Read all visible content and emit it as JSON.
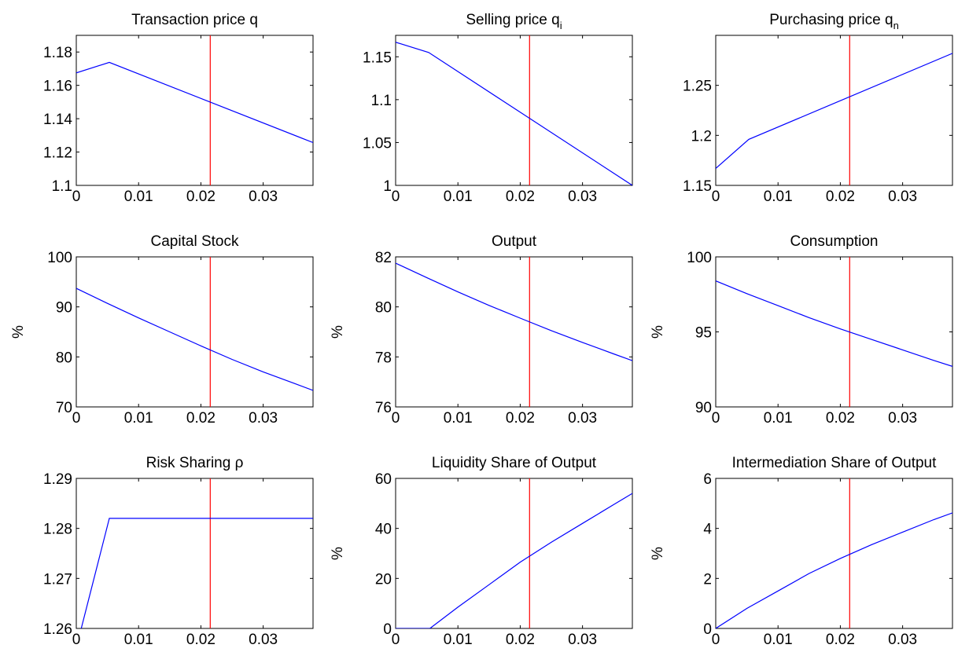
{
  "chart_data": [
    {
      "type": "line",
      "title": "Transaction price q",
      "title_main": "Transaction price q",
      "title_sub": "",
      "ylabel": "",
      "xlim": [
        0,
        0.038
      ],
      "ylim": [
        1.1,
        1.19
      ],
      "xticks": [
        0,
        0.01,
        0.02,
        0.03
      ],
      "xtick_labels": [
        "0",
        "0.01",
        "0.02",
        "0.03"
      ],
      "yticks": [
        1.1,
        1.12,
        1.14,
        1.16,
        1.18
      ],
      "ytick_labels": [
        "1.1",
        "1.12",
        "1.14",
        "1.16",
        "1.18"
      ],
      "vline_x": 0.0215,
      "grid": false,
      "series": [
        {
          "color": "#0000ff",
          "x": [
            0,
            0.0053,
            0.038
          ],
          "y": [
            1.1675,
            1.1738,
            1.1257
          ]
        }
      ]
    },
    {
      "type": "line",
      "title": "Selling price q_i",
      "title_main": "Selling price q",
      "title_sub": "i",
      "ylabel": "",
      "xlim": [
        0,
        0.038
      ],
      "ylim": [
        1.0,
        1.175
      ],
      "xticks": [
        0,
        0.01,
        0.02,
        0.03
      ],
      "xtick_labels": [
        "0",
        "0.01",
        "0.02",
        "0.03"
      ],
      "yticks": [
        1.0,
        1.05,
        1.1,
        1.15
      ],
      "ytick_labels": [
        "1",
        "1.05",
        "1.1",
        "1.15"
      ],
      "vline_x": 0.0215,
      "grid": false,
      "series": [
        {
          "color": "#0000ff",
          "x": [
            0,
            0.0053,
            0.038
          ],
          "y": [
            1.167,
            1.155,
            1.0
          ]
        }
      ]
    },
    {
      "type": "line",
      "title": "Purchasing price q_n",
      "title_main": "Purchasing price q",
      "title_sub": "n",
      "ylabel": "",
      "xlim": [
        0,
        0.038
      ],
      "ylim": [
        1.15,
        1.3
      ],
      "xticks": [
        0,
        0.01,
        0.02,
        0.03
      ],
      "xtick_labels": [
        "0",
        "0.01",
        "0.02",
        "0.03"
      ],
      "yticks": [
        1.15,
        1.2,
        1.25
      ],
      "ytick_labels": [
        "1.15",
        "1.2",
        "1.25"
      ],
      "vline_x": 0.0215,
      "grid": false,
      "series": [
        {
          "color": "#0000ff",
          "x": [
            0,
            0.0053,
            0.038
          ],
          "y": [
            1.167,
            1.196,
            1.282
          ]
        }
      ]
    },
    {
      "type": "line",
      "title": "Capital Stock",
      "title_main": "Capital Stock",
      "title_sub": "",
      "ylabel": "%",
      "xlim": [
        0,
        0.038
      ],
      "ylim": [
        70,
        100
      ],
      "xticks": [
        0,
        0.01,
        0.02,
        0.03
      ],
      "xtick_labels": [
        "0",
        "0.01",
        "0.02",
        "0.03"
      ],
      "yticks": [
        70,
        80,
        90,
        100
      ],
      "ytick_labels": [
        "70",
        "80",
        "90",
        "100"
      ],
      "vline_x": 0.0215,
      "grid": false,
      "series": [
        {
          "color": "#0000ff",
          "x": [
            0,
            0.005,
            0.01,
            0.015,
            0.02,
            0.025,
            0.03,
            0.035,
            0.038
          ],
          "y": [
            93.7,
            90.7,
            87.8,
            85.0,
            82.2,
            79.5,
            77.0,
            74.7,
            73.3
          ]
        }
      ]
    },
    {
      "type": "line",
      "title": "Output",
      "title_main": "Output",
      "title_sub": "",
      "ylabel": "%",
      "xlim": [
        0,
        0.038
      ],
      "ylim": [
        76,
        82
      ],
      "xticks": [
        0,
        0.01,
        0.02,
        0.03
      ],
      "xtick_labels": [
        "0",
        "0.01",
        "0.02",
        "0.03"
      ],
      "yticks": [
        76,
        78,
        80,
        82
      ],
      "ytick_labels": [
        "76",
        "78",
        "80",
        "82"
      ],
      "vline_x": 0.0215,
      "grid": false,
      "series": [
        {
          "color": "#0000ff",
          "x": [
            0,
            0.005,
            0.01,
            0.015,
            0.02,
            0.025,
            0.03,
            0.035,
            0.038
          ],
          "y": [
            81.75,
            81.17,
            80.6,
            80.06,
            79.55,
            79.05,
            78.58,
            78.12,
            77.85
          ]
        }
      ]
    },
    {
      "type": "line",
      "title": "Consumption",
      "title_main": "Consumption",
      "title_sub": "",
      "ylabel": "%",
      "xlim": [
        0,
        0.038
      ],
      "ylim": [
        90,
        100
      ],
      "xticks": [
        0,
        0.01,
        0.02,
        0.03
      ],
      "xtick_labels": [
        "0",
        "0.01",
        "0.02",
        "0.03"
      ],
      "yticks": [
        90,
        95,
        100
      ],
      "ytick_labels": [
        "90",
        "95",
        "100"
      ],
      "vline_x": 0.0215,
      "grid": false,
      "series": [
        {
          "color": "#0000ff",
          "x": [
            0,
            0.005,
            0.01,
            0.015,
            0.02,
            0.025,
            0.03,
            0.035,
            0.038
          ],
          "y": [
            98.4,
            97.55,
            96.75,
            95.95,
            95.2,
            94.5,
            93.8,
            93.1,
            92.7
          ]
        }
      ]
    },
    {
      "type": "line",
      "title": "Risk Sharing ρ",
      "title_main": "Risk Sharing ρ",
      "title_sub": "",
      "ylabel": "",
      "xlim": [
        0,
        0.038
      ],
      "ylim": [
        1.26,
        1.29
      ],
      "xticks": [
        0,
        0.01,
        0.02,
        0.03
      ],
      "xtick_labels": [
        "0",
        "0.01",
        "0.02",
        "0.03"
      ],
      "yticks": [
        1.26,
        1.27,
        1.28,
        1.29
      ],
      "ytick_labels": [
        "1.26",
        "1.27",
        "1.28",
        "1.29"
      ],
      "vline_x": 0.0215,
      "grid": false,
      "series": [
        {
          "color": "#0000ff",
          "x": [
            0.0008,
            0.0053,
            0.038
          ],
          "y": [
            1.26,
            1.282,
            1.282
          ]
        }
      ]
    },
    {
      "type": "line",
      "title": "Liquidity Share of Output",
      "title_main": "Liquidity Share of Output",
      "title_sub": "",
      "ylabel": "%",
      "xlim": [
        0,
        0.038
      ],
      "ylim": [
        0,
        60
      ],
      "xticks": [
        0,
        0.01,
        0.02,
        0.03
      ],
      "xtick_labels": [
        "0",
        "0.01",
        "0.02",
        "0.03"
      ],
      "yticks": [
        0,
        20,
        40,
        60
      ],
      "ytick_labels": [
        "0",
        "20",
        "40",
        "60"
      ],
      "vline_x": 0.0215,
      "grid": false,
      "series": [
        {
          "color": "#0000ff",
          "x": [
            0,
            0.0055,
            0.01,
            0.015,
            0.02,
            0.025,
            0.03,
            0.035,
            0.038
          ],
          "y": [
            0,
            0,
            8.5,
            17.5,
            26.5,
            34.5,
            42,
            49.5,
            54
          ]
        }
      ]
    },
    {
      "type": "line",
      "title": "Intermediation Share of Output",
      "title_main": "Intermediation Share of Output",
      "title_sub": "",
      "ylabel": "%",
      "xlim": [
        0,
        0.038
      ],
      "ylim": [
        0,
        6
      ],
      "xticks": [
        0,
        0.01,
        0.02,
        0.03
      ],
      "xtick_labels": [
        "0",
        "0.01",
        "0.02",
        "0.03"
      ],
      "yticks": [
        0,
        2,
        4,
        6
      ],
      "ytick_labels": [
        "0",
        "2",
        "4",
        "6"
      ],
      "vline_x": 0.0215,
      "grid": false,
      "series": [
        {
          "color": "#0000ff",
          "x": [
            0,
            0.005,
            0.01,
            0.015,
            0.02,
            0.025,
            0.03,
            0.035,
            0.038
          ],
          "y": [
            0,
            0.8,
            1.5,
            2.2,
            2.8,
            3.35,
            3.85,
            4.35,
            4.62
          ]
        }
      ]
    }
  ],
  "colors": {
    "series_line": "#0000ff",
    "marker_line": "#ff0000",
    "axes": "#000000",
    "background": "#ffffff"
  }
}
